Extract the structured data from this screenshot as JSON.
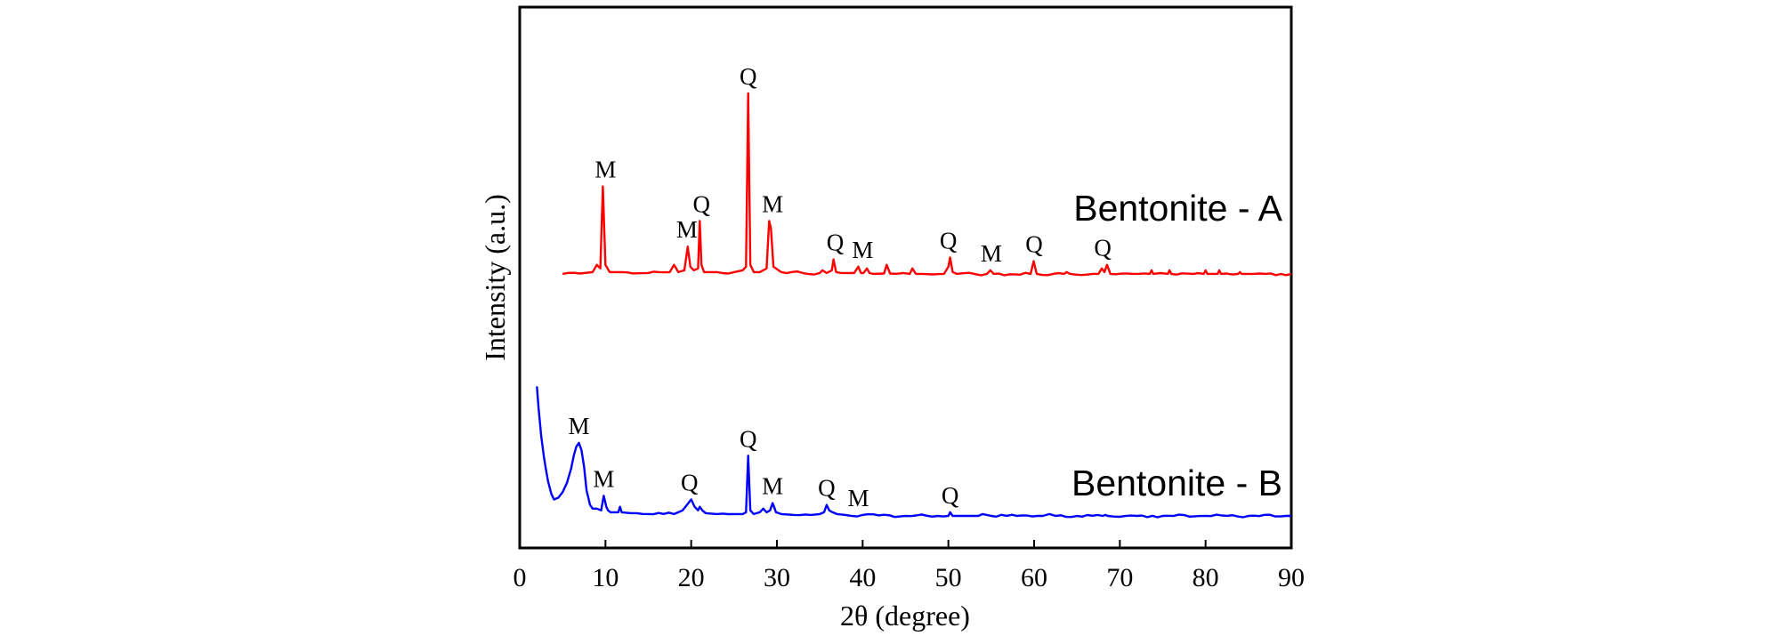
{
  "chart_data": {
    "type": "line",
    "xlabel": "2θ (degree)",
    "ylabel": "Intensity (a.u.)",
    "xlim": [
      0,
      90
    ],
    "x_ticks": [
      0,
      10,
      20,
      30,
      40,
      50,
      60,
      70,
      80,
      90
    ],
    "y_tick_labels": "none",
    "grid": false,
    "legend": "none",
    "series": [
      {
        "name": "Bentonite - A",
        "color": "#ff0000",
        "x": [
          5.0,
          7.0,
          8.5,
          9.0,
          9.4,
          9.7,
          10.0,
          10.5,
          12.0,
          15.0,
          17.5,
          18.0,
          18.5,
          19.2,
          19.6,
          19.9,
          20.3,
          20.8,
          21.0,
          21.2,
          21.5,
          23.0,
          25.0,
          26.0,
          26.4,
          26.65,
          26.9,
          27.3,
          28.0,
          28.8,
          29.1,
          29.3,
          29.6,
          30.5,
          33.0,
          35.0,
          35.3,
          35.8,
          36.4,
          36.6,
          36.9,
          37.5,
          39.0,
          39.5,
          39.8,
          40.1,
          40.5,
          40.8,
          41.2,
          42.5,
          42.8,
          43.2,
          45.5,
          45.8,
          46.2,
          49.5,
          50.0,
          50.2,
          50.5,
          51.0,
          54.5,
          54.9,
          55.3,
          59.6,
          59.95,
          60.3,
          63.5,
          63.8,
          64.2,
          67.5,
          67.9,
          68.2,
          68.5,
          68.9,
          73.5,
          73.7,
          73.9,
          75.6,
          75.8,
          76.0,
          79.8,
          80.0,
          80.2,
          81.4,
          81.6,
          81.8,
          83.8,
          84.0,
          84.2,
          87.0,
          90.0
        ],
        "y": [
          0.01,
          0.012,
          0.02,
          0.06,
          0.04,
          0.49,
          0.06,
          0.02,
          0.02,
          0.015,
          0.02,
          0.06,
          0.02,
          0.03,
          0.16,
          0.05,
          0.03,
          0.04,
          0.3,
          0.06,
          0.02,
          0.02,
          0.02,
          0.03,
          0.05,
          1.0,
          0.06,
          0.02,
          0.02,
          0.04,
          0.3,
          0.26,
          0.05,
          0.02,
          0.015,
          0.015,
          0.03,
          0.015,
          0.03,
          0.09,
          0.02,
          0.015,
          0.015,
          0.05,
          0.015,
          0.015,
          0.04,
          0.015,
          0.01,
          0.012,
          0.06,
          0.012,
          0.01,
          0.04,
          0.01,
          0.01,
          0.05,
          0.1,
          0.02,
          0.01,
          0.01,
          0.03,
          0.01,
          0.01,
          0.08,
          0.01,
          0.01,
          0.02,
          0.01,
          0.01,
          0.04,
          0.02,
          0.06,
          0.01,
          0.01,
          0.03,
          0.01,
          0.01,
          0.03,
          0.01,
          0.01,
          0.03,
          0.01,
          0.01,
          0.03,
          0.01,
          0.01,
          0.02,
          0.01,
          0.01,
          0.01
        ],
        "label": "Bentonite - A",
        "peaks": [
          {
            "x": 10.0,
            "y": 0.49,
            "label": "M"
          },
          {
            "x": 19.5,
            "y": 0.16,
            "label": "M"
          },
          {
            "x": 21.2,
            "y": 0.3,
            "label": "Q"
          },
          {
            "x": 26.65,
            "y": 1.0,
            "label": "Q"
          },
          {
            "x": 29.5,
            "y": 0.3,
            "label": "M"
          },
          {
            "x": 36.8,
            "y": 0.09,
            "label": "Q"
          },
          {
            "x": 40.0,
            "y": 0.05,
            "label": "M"
          },
          {
            "x": 50.0,
            "y": 0.1,
            "label": "Q"
          },
          {
            "x": 55.0,
            "y": 0.03,
            "label": "M"
          },
          {
            "x": 60.0,
            "y": 0.08,
            "label": "Q"
          },
          {
            "x": 68.0,
            "y": 0.06,
            "label": "Q"
          }
        ]
      },
      {
        "name": "Bentonite - B",
        "color": "#0000ff",
        "x": [
          2.0,
          2.2,
          2.5,
          2.8,
          3.0,
          3.3,
          3.7,
          4.0,
          4.5,
          5.0,
          5.5,
          6.0,
          6.3,
          6.6,
          6.9,
          7.2,
          7.5,
          7.8,
          8.2,
          8.5,
          9.0,
          9.5,
          9.8,
          10.1,
          10.3,
          10.6,
          11.5,
          11.7,
          11.9,
          13.0,
          15.0,
          18.0,
          19.0,
          19.5,
          20.0,
          20.4,
          20.8,
          21.0,
          21.3,
          21.7,
          23.0,
          25.0,
          26.0,
          26.4,
          26.65,
          26.9,
          27.3,
          28.0,
          28.4,
          28.8,
          29.2,
          29.5,
          29.9,
          30.5,
          32.0,
          34.0,
          35.0,
          35.5,
          35.8,
          36.1,
          36.5,
          37.0,
          38.0,
          40.0,
          45.0,
          50.0,
          50.2,
          50.5,
          52.0,
          53.5,
          54.0,
          55.0,
          58.0,
          61.0,
          61.8,
          62.5,
          65.0,
          68.0,
          68.3,
          68.6,
          72.0,
          75.0,
          80.0,
          85.0,
          90.0
        ],
        "y": [
          0.72,
          0.6,
          0.45,
          0.34,
          0.28,
          0.2,
          0.13,
          0.1,
          0.11,
          0.14,
          0.19,
          0.27,
          0.34,
          0.39,
          0.41,
          0.37,
          0.28,
          0.15,
          0.07,
          0.05,
          0.05,
          0.04,
          0.12,
          0.06,
          0.04,
          0.03,
          0.03,
          0.06,
          0.03,
          0.025,
          0.02,
          0.02,
          0.04,
          0.07,
          0.1,
          0.06,
          0.04,
          0.06,
          0.04,
          0.025,
          0.02,
          0.02,
          0.02,
          0.03,
          0.34,
          0.04,
          0.02,
          0.03,
          0.05,
          0.03,
          0.04,
          0.08,
          0.03,
          0.02,
          0.015,
          0.015,
          0.02,
          0.03,
          0.07,
          0.04,
          0.03,
          0.02,
          0.015,
          0.015,
          0.01,
          0.01,
          0.03,
          0.01,
          0.01,
          0.01,
          0.02,
          0.01,
          0.01,
          0.01,
          0.02,
          0.01,
          0.01,
          0.01,
          0.015,
          0.01,
          0.01,
          0.01,
          0.01,
          0.01,
          0.01
        ],
        "label": "Bentonite - B",
        "peaks": [
          {
            "x": 6.9,
            "y": 0.41,
            "label": "M"
          },
          {
            "x": 9.8,
            "y": 0.12,
            "label": "M"
          },
          {
            "x": 19.8,
            "y": 0.1,
            "label": "Q"
          },
          {
            "x": 26.65,
            "y": 0.34,
            "label": "Q"
          },
          {
            "x": 29.5,
            "y": 0.08,
            "label": "M"
          },
          {
            "x": 35.8,
            "y": 0.07,
            "label": "Q"
          },
          {
            "x": 39.5,
            "y": 0.015,
            "label": "M"
          },
          {
            "x": 50.2,
            "y": 0.03,
            "label": "Q"
          }
        ]
      }
    ]
  }
}
